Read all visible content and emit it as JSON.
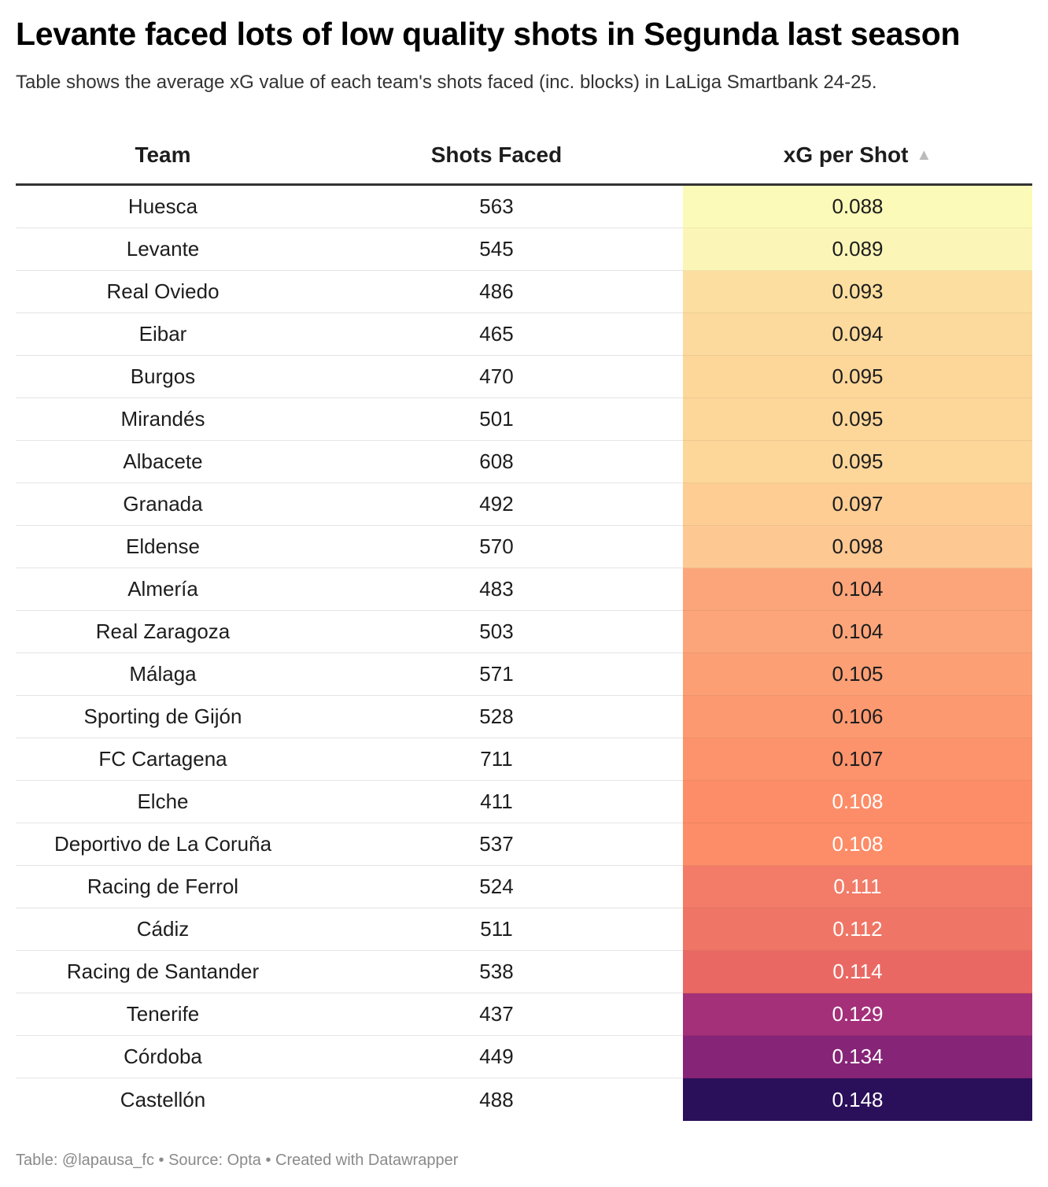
{
  "title": "Levante faced lots of low quality shots in Segunda last season",
  "subtitle": "Table shows the average xG value of each team's shots faced (inc. blocks) in LaLiga Smartbank 24-25.",
  "footer": "Table: @lapausa_fc • Source: Opta • Created with Datawrapper",
  "chart_data": {
    "type": "table",
    "columns": [
      "Team",
      "Shots Faced",
      "xG per Shot"
    ],
    "sort": {
      "column": "xG per Shot",
      "direction": "ascending",
      "icon": "sort-ascending-icon"
    },
    "rows": [
      {
        "team": "Huesca",
        "shots": "563",
        "xg": "0.088",
        "color": "#fbfab8",
        "text_color": "#1d1d1d"
      },
      {
        "team": "Levante",
        "shots": "545",
        "xg": "0.089",
        "color": "#fbf6b8",
        "text_color": "#1d1d1d"
      },
      {
        "team": "Real Oviedo",
        "shots": "486",
        "xg": "0.093",
        "color": "#fcdea0",
        "text_color": "#1d1d1d"
      },
      {
        "team": "Eibar",
        "shots": "465",
        "xg": "0.094",
        "color": "#fcd99c",
        "text_color": "#1d1d1d"
      },
      {
        "team": "Burgos",
        "shots": "470",
        "xg": "0.095",
        "color": "#fdd69a",
        "text_color": "#1d1d1d"
      },
      {
        "team": "Mirandés",
        "shots": "501",
        "xg": "0.095",
        "color": "#fdd69a",
        "text_color": "#1d1d1d"
      },
      {
        "team": "Albacete",
        "shots": "608",
        "xg": "0.095",
        "color": "#fdd69a",
        "text_color": "#1d1d1d"
      },
      {
        "team": "Granada",
        "shots": "492",
        "xg": "0.097",
        "color": "#fdcd94",
        "text_color": "#1d1d1d"
      },
      {
        "team": "Eldense",
        "shots": "570",
        "xg": "0.098",
        "color": "#fdc892",
        "text_color": "#1d1d1d"
      },
      {
        "team": "Almería",
        "shots": "483",
        "xg": "0.104",
        "color": "#fca57a",
        "text_color": "#1d1d1d"
      },
      {
        "team": "Real Zaragoza",
        "shots": "503",
        "xg": "0.104",
        "color": "#fca57a",
        "text_color": "#1d1d1d"
      },
      {
        "team": "Málaga",
        "shots": "571",
        "xg": "0.105",
        "color": "#fc9f75",
        "text_color": "#1d1d1d"
      },
      {
        "team": "Sporting de Gijón",
        "shots": "528",
        "xg": "0.106",
        "color": "#fc9970",
        "text_color": "#1d1d1d"
      },
      {
        "team": "FC Cartagena",
        "shots": "711",
        "xg": "0.107",
        "color": "#fc936c",
        "text_color": "#1d1d1d"
      },
      {
        "team": "Elche",
        "shots": "411",
        "xg": "0.108",
        "color": "#fc8d68",
        "text_color": "#ffffff"
      },
      {
        "team": "Deportivo de La Coruña",
        "shots": "537",
        "xg": "0.108",
        "color": "#fc8d68",
        "text_color": "#ffffff"
      },
      {
        "team": "Racing de Ferrol",
        "shots": "524",
        "xg": "0.111",
        "color": "#f27c68",
        "text_color": "#ffffff"
      },
      {
        "team": "Cádiz",
        "shots": "511",
        "xg": "0.112",
        "color": "#ef7666",
        "text_color": "#ffffff"
      },
      {
        "team": "Racing de Santander",
        "shots": "538",
        "xg": "0.114",
        "color": "#ea6863",
        "text_color": "#ffffff"
      },
      {
        "team": "Tenerife",
        "shots": "437",
        "xg": "0.129",
        "color": "#a4307a",
        "text_color": "#ffffff"
      },
      {
        "team": "Córdoba",
        "shots": "449",
        "xg": "0.134",
        "color": "#862477",
        "text_color": "#ffffff"
      },
      {
        "team": "Castellón",
        "shots": "488",
        "xg": "0.148",
        "color": "#2a0f5a",
        "text_color": "#ffffff"
      }
    ]
  }
}
